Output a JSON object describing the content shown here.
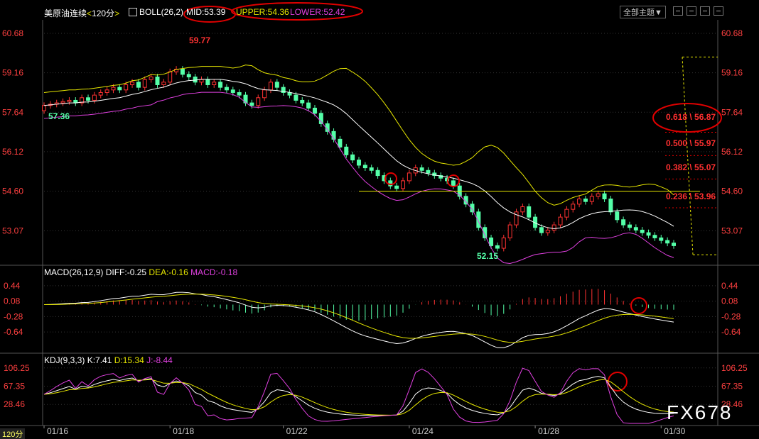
{
  "header": {
    "symbol": "美原油连续",
    "period": "120分",
    "indicator": "BOLL(26,2)",
    "mid": "MID:53.39",
    "upper": "UPPER:54.36",
    "lower": "LOWER:52.42",
    "theme": "全部主题▼",
    "timeframe_label": "120分"
  },
  "colors": {
    "up": "#ff3232",
    "down": "#54ffa8",
    "mid": "#ffffff",
    "upper": "#e6e600",
    "lower": "#e040e0",
    "annot": "#e00000",
    "axis": "#ff4040",
    "grid": "#333333"
  },
  "annotations": {
    "high": "59.77",
    "low_start": "57.36",
    "low": "52.15",
    "fib": [
      {
        "label": "0.618",
        "value": "56.87"
      },
      {
        "label": "0.500",
        "value": "55.97"
      },
      {
        "label": "0.382",
        "value": "55.07"
      },
      {
        "label": "0.236",
        "value": "53.96"
      }
    ]
  },
  "watermark": "FX678",
  "macd_header": {
    "name": "MACD(26,12,9)",
    "diff": "DIFF:-0.25",
    "dea": "DEA:-0.16",
    "macd": "MACD:-0.18"
  },
  "kdj_header": {
    "name": "KDJ(9,3,3)",
    "k": "K:7.41",
    "d": "D:15.34",
    "j": "J:-8.44"
  },
  "chart_data": {
    "type": "candlestick",
    "x_ticks": [
      "01/16",
      "01/18",
      "01/22",
      "01/24",
      "01/28",
      "01/30"
    ],
    "x_tick_index": [
      0,
      20,
      38,
      58,
      78,
      98
    ],
    "price_axis": [
      60.68,
      59.16,
      57.64,
      56.12,
      54.6,
      53.07
    ],
    "price_ylim": [
      51.8,
      61.2
    ],
    "macd_axis": [
      0.44,
      0.08,
      -0.28,
      -0.64
    ],
    "macd_ylim": [
      -1.1,
      0.62
    ],
    "kdj_axis": [
      106.25,
      67.35,
      28.46
    ],
    "kdj_ylim": [
      -12,
      112
    ],
    "horizontal_line": 54.6,
    "fib_range": [
      59.77,
      52.15
    ],
    "close": [
      57.9,
      57.95,
      58.0,
      58.05,
      58.1,
      58.0,
      58.2,
      58.1,
      58.3,
      58.4,
      58.5,
      58.6,
      58.5,
      58.7,
      58.8,
      58.6,
      58.9,
      59.0,
      58.7,
      58.8,
      59.2,
      59.3,
      59.1,
      59.0,
      58.8,
      58.9,
      58.7,
      58.8,
      58.6,
      58.5,
      58.4,
      58.3,
      58.0,
      57.9,
      58.2,
      58.5,
      58.8,
      58.6,
      58.4,
      58.3,
      58.1,
      58.0,
      57.8,
      57.6,
      57.2,
      56.9,
      56.6,
      56.3,
      56.0,
      55.8,
      55.6,
      55.5,
      55.4,
      55.2,
      55.0,
      54.8,
      54.7,
      55.0,
      55.3,
      55.5,
      55.4,
      55.3,
      55.2,
      55.1,
      55.0,
      54.8,
      54.4,
      54.1,
      53.8,
      53.2,
      52.8,
      52.5,
      52.4,
      52.8,
      53.3,
      53.8,
      54.0,
      53.6,
      53.2,
      53.0,
      53.1,
      53.3,
      53.6,
      53.9,
      54.1,
      54.3,
      54.2,
      54.4,
      54.5,
      54.3,
      53.8,
      53.5,
      53.3,
      53.2,
      53.1,
      53.0,
      52.9,
      52.8,
      52.7,
      52.6,
      52.5
    ]
  }
}
